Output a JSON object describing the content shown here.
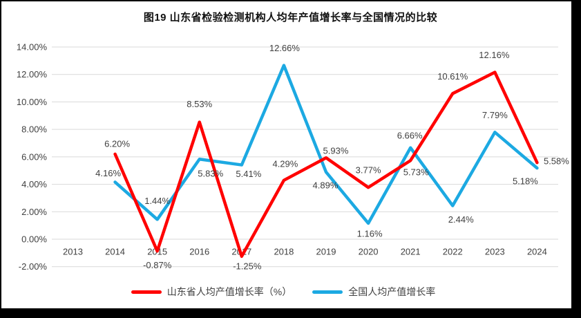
{
  "figure": {
    "title": "图19  山东省检验检测机构人均年产值增长率与全国情况的比较"
  },
  "chart_data": {
    "type": "line",
    "title": "图19  山东省检验检测机构人均年产值增长率与全国情况的比较",
    "categories": [
      "2013",
      "2014",
      "2015",
      "2016",
      "2017",
      "2018",
      "2019",
      "2020",
      "2021",
      "2022",
      "2023",
      "2024"
    ],
    "series": [
      {
        "name": "山东省人均产值增长率（%）",
        "color": "#ff0000",
        "values": [
          null,
          6.2,
          -0.87,
          8.53,
          -1.25,
          4.29,
          5.93,
          3.77,
          5.73,
          10.61,
          12.16,
          5.58
        ],
        "labels": [
          "",
          "6.20%",
          "-0.87%",
          "8.53%",
          "-1.25%",
          "4.29%",
          "5.93%",
          "3.77%",
          "5.73%",
          "10.61%",
          "12.16%",
          "5.58%"
        ]
      },
      {
        "name": "全国人均产值增长率",
        "color": "#1ca9e2",
        "values": [
          null,
          4.16,
          1.44,
          5.83,
          5.41,
          12.66,
          4.89,
          1.16,
          6.66,
          2.44,
          7.79,
          5.18
        ],
        "labels": [
          "",
          "4.16%",
          "1.44%",
          "5.83%",
          "5.41%",
          "12.66%",
          "4.89%",
          "1.16%",
          "6.66%",
          "2.44%",
          "7.79%",
          "5.18%"
        ]
      }
    ],
    "y_ticks": [
      "14.00%",
      "12.00%",
      "10.00%",
      "8.00%",
      "6.00%",
      "4.00%",
      "2.00%",
      "0.00%",
      "-2.00%"
    ],
    "ylim": [
      -2,
      14
    ],
    "y_step": 2,
    "grid": true,
    "legend_position": "bottom",
    "grid_color": "#d9d9d9",
    "label_color": "#404040",
    "axis_label_color": "#404040"
  }
}
